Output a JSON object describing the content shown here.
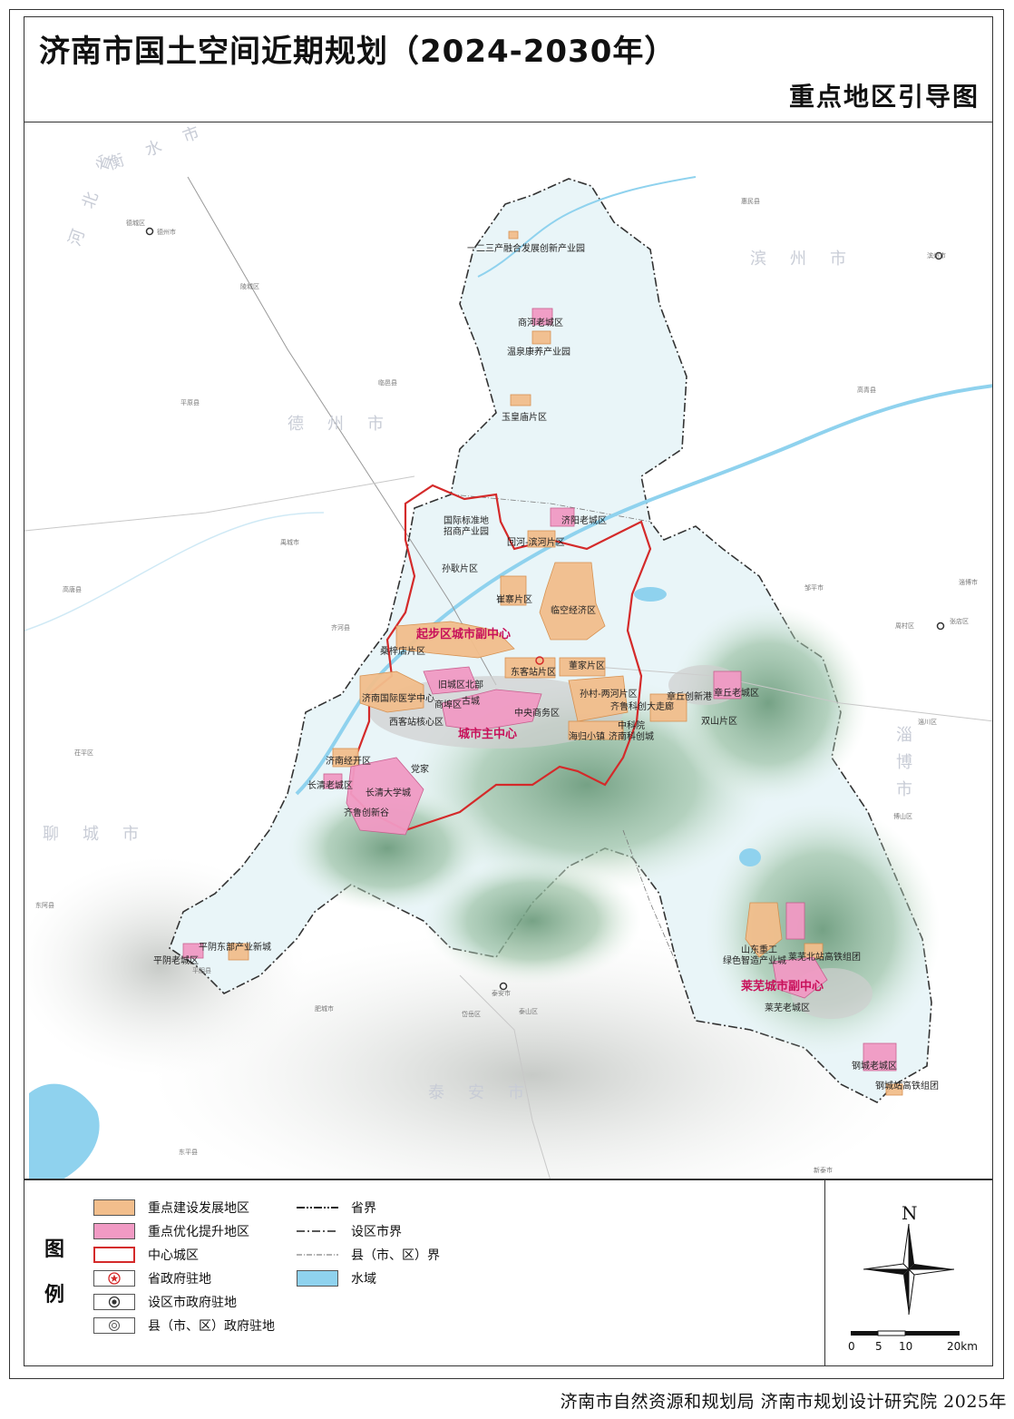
{
  "title": "济南市国土空间近期规划（2024-2030年）",
  "subtitle": "重点地区引导图",
  "legend": {
    "head_1": "图",
    "head_2": "例",
    "items": [
      {
        "label": "重点建设发展地区",
        "swatch": "#f2be8c"
      },
      {
        "label": "重点优化提升地区",
        "swatch": "#f19ac4"
      },
      {
        "label": "中心城区",
        "swatch": "#d42a2a"
      },
      {
        "label": "省政府驻地",
        "swatch": "#d42a2a"
      },
      {
        "label": "设区市政府驻地",
        "swatch": "#333333"
      },
      {
        "label": "县（市、区）政府驻地",
        "swatch": "#555555"
      }
    ],
    "lines": [
      {
        "label": "省界"
      },
      {
        "label": "设区市界"
      },
      {
        "label": "县（市、区）界"
      },
      {
        "label": "水域",
        "swatch": "#8fd2ee"
      }
    ]
  },
  "compass": {
    "north": "N"
  },
  "scale": {
    "ticks": [
      "0",
      "5",
      "10",
      "20km"
    ]
  },
  "credits": "济南市自然资源和规划局 济南市规划设计研究院 2025年",
  "colors": {
    "build_zone": "#f2be8c",
    "upgrade_zone": "#f19ac4",
    "center_boundary": "#d42a2a",
    "water": "#8fd2ee",
    "mountain": "#8fb79a",
    "subcenter_text": "#c8105a"
  },
  "map": {
    "regions": {
      "dezhou": "德州市",
      "binzhou": "滨州市",
      "zibo": "淄博市",
      "liaocheng": "聊城市",
      "taian": "泰安市",
      "hengshui": "衡水市",
      "hebei": "河北省"
    },
    "labels": {
      "l01": "一二三产融合发展创新产业园",
      "l02": "商河老城区",
      "l03": "温泉康养产业园",
      "l04": "玉皇庙片区",
      "l05": "国际标准地",
      "l06": "招商产业园",
      "l07": "济阳老城区",
      "l08": "回河-滨河片区",
      "l09": "孙耿片区",
      "l10": "崔寨片区",
      "l11": "临空经济区",
      "l12": "起步区城市副中心",
      "l13": "桑梓店片区",
      "l14": "东客站片区",
      "l15": "董家片区",
      "l16": "旧城区北部",
      "l17": "济南国际医学中心",
      "l18": "商埠区",
      "l19": "古城",
      "l20": "中央商务区",
      "l21": "孙村-两河片区",
      "l22": "齐鲁科创大走廊",
      "l23": "章丘创新港",
      "l24": "章丘老城区",
      "l25": "双山片区",
      "l26": "西客站核心区",
      "l27": "城市主中心",
      "l28": "海归小镇",
      "l29": "中科院",
      "l30": "济南科创城",
      "l31": "济南经开区",
      "l32": "党家",
      "l33": "长清老城区",
      "l34": "长清大学城",
      "l35": "齐鲁创新谷",
      "l36": "平阴东部产业新城",
      "l37": "平阴老城区",
      "l38": "山东重工",
      "l39": "绿色智造产业城",
      "l40": "莱芜北站高铁组团",
      "l41": "莱芜城市副中心",
      "l42": "莱芜老城区",
      "l43": "钢城老城区",
      "l44": "钢城站高铁组团"
    },
    "minor_labels": {
      "m01": "德城区",
      "m02": "德州市",
      "m03": "陵城区",
      "m04": "临邑县",
      "m05": "平原县",
      "m06": "禹城市",
      "m07": "齐河县",
      "m08": "高唐县",
      "m09": "茌平区",
      "m10": "东阿县",
      "m11": "惠民县",
      "m12": "滨州市",
      "m13": "高青县",
      "m14": "邹平市",
      "m15": "周村区",
      "m16": "张店区",
      "m17": "淄川区",
      "m18": "博山区",
      "m19": "淄博市",
      "m20": "泰安市",
      "m21": "泰山区",
      "m22": "岱岳区",
      "m23": "肥城市",
      "m24": "东平县",
      "m25": "新泰市",
      "m26": "平阴县"
    }
  }
}
